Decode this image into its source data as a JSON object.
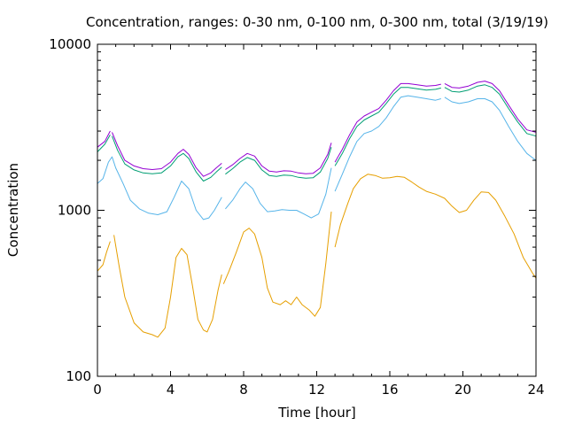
{
  "chart_data": {
    "type": "line",
    "title": "Concentration, ranges: 0-30 nm, 0-100 nm, 0-300 nm, total (3/19/19)",
    "xlabel": "Time [hour]",
    "ylabel": "Concentration",
    "xlim": [
      0,
      24
    ],
    "ylim": [
      100,
      10000
    ],
    "yscale": "log",
    "grid": false,
    "x_ticks": [
      0,
      4,
      8,
      12,
      16,
      20,
      24
    ],
    "x_tick_labels": [
      "0",
      "4",
      "8",
      "12",
      "16",
      "20",
      "24"
    ],
    "y_ticks": [
      100,
      1000,
      10000
    ],
    "y_tick_labels": [
      "100",
      "1000",
      "10000"
    ],
    "colors": {
      "0-30 nm": "#e69f00",
      "0-100 nm": "#56b4e9",
      "0-300 nm": "#009e73",
      "total": "#9400d3"
    },
    "series": [
      {
        "key": "0-30 nm",
        "color": "#e69f00",
        "segments": [
          [
            [
              0,
              430
            ],
            [
              0.3,
              470
            ],
            [
              0.5,
              560
            ],
            [
              0.7,
              650
            ]
          ],
          [
            [
              0.9,
              710
            ],
            [
              1.2,
              450
            ],
            [
              1.5,
              300
            ],
            [
              2.0,
              210
            ],
            [
              2.5,
              185
            ],
            [
              3.0,
              178
            ],
            [
              3.3,
              172
            ],
            [
              3.7,
              195
            ],
            [
              4.0,
              300
            ],
            [
              4.3,
              520
            ],
            [
              4.6,
              590
            ],
            [
              4.9,
              540
            ],
            [
              5.2,
              350
            ],
            [
              5.5,
              220
            ],
            [
              5.8,
              190
            ],
            [
              6.0,
              185
            ],
            [
              6.3,
              220
            ],
            [
              6.6,
              330
            ],
            [
              6.8,
              410
            ]
          ],
          [
            [
              6.9,
              360
            ],
            [
              7.2,
              430
            ],
            [
              7.6,
              560
            ],
            [
              8.0,
              740
            ],
            [
              8.3,
              780
            ],
            [
              8.6,
              720
            ],
            [
              9.0,
              520
            ],
            [
              9.3,
              340
            ],
            [
              9.6,
              280
            ],
            [
              10.0,
              270
            ],
            [
              10.3,
              285
            ],
            [
              10.6,
              270
            ],
            [
              10.9,
              300
            ],
            [
              11.2,
              270
            ],
            [
              11.6,
              250
            ],
            [
              11.9,
              230
            ],
            [
              12.2,
              260
            ],
            [
              12.5,
              480
            ],
            [
              12.8,
              980
            ]
          ],
          [
            [
              13.0,
              600
            ],
            [
              13.3,
              820
            ],
            [
              13.7,
              1100
            ],
            [
              14.0,
              1350
            ],
            [
              14.4,
              1550
            ],
            [
              14.8,
              1650
            ],
            [
              15.2,
              1620
            ],
            [
              15.6,
              1560
            ],
            [
              16.0,
              1570
            ],
            [
              16.4,
              1600
            ],
            [
              16.8,
              1580
            ],
            [
              17.2,
              1480
            ],
            [
              17.6,
              1380
            ],
            [
              18.0,
              1300
            ],
            [
              18.5,
              1250
            ],
            [
              19.0,
              1180
            ],
            [
              19.4,
              1060
            ],
            [
              19.8,
              970
            ],
            [
              20.2,
              1000
            ],
            [
              20.6,
              1150
            ],
            [
              21.0,
              1290
            ],
            [
              21.4,
              1280
            ],
            [
              21.8,
              1150
            ],
            [
              22.3,
              920
            ],
            [
              22.8,
              720
            ],
            [
              23.3,
              520
            ],
            [
              23.8,
              420
            ],
            [
              24.0,
              390
            ]
          ]
        ]
      },
      {
        "key": "0-100 nm",
        "color": "#56b4e9",
        "segments": [
          [
            [
              0,
              1450
            ],
            [
              0.3,
              1550
            ],
            [
              0.6,
              1950
            ],
            [
              0.8,
              2100
            ],
            [
              1.0,
              1800
            ],
            [
              1.4,
              1450
            ],
            [
              1.8,
              1150
            ],
            [
              2.3,
              1020
            ],
            [
              2.8,
              960
            ],
            [
              3.3,
              940
            ],
            [
              3.8,
              980
            ],
            [
              4.2,
              1200
            ],
            [
              4.6,
              1500
            ],
            [
              5.0,
              1350
            ],
            [
              5.4,
              1000
            ],
            [
              5.8,
              880
            ],
            [
              6.1,
              900
            ],
            [
              6.4,
              1000
            ],
            [
              6.8,
              1200
            ]
          ],
          [
            [
              7.0,
              1020
            ],
            [
              7.4,
              1150
            ],
            [
              7.8,
              1350
            ],
            [
              8.1,
              1480
            ],
            [
              8.5,
              1350
            ],
            [
              8.9,
              1100
            ],
            [
              9.3,
              980
            ],
            [
              9.7,
              990
            ],
            [
              10.1,
              1010
            ],
            [
              10.5,
              1000
            ],
            [
              10.9,
              1000
            ],
            [
              11.3,
              950
            ],
            [
              11.7,
              900
            ],
            [
              12.1,
              950
            ],
            [
              12.5,
              1250
            ],
            [
              12.8,
              1800
            ]
          ],
          [
            [
              13.0,
              1300
            ],
            [
              13.4,
              1650
            ],
            [
              13.8,
              2100
            ],
            [
              14.2,
              2600
            ],
            [
              14.6,
              2900
            ],
            [
              15.0,
              3000
            ],
            [
              15.4,
              3200
            ],
            [
              15.8,
              3600
            ],
            [
              16.2,
              4200
            ],
            [
              16.6,
              4800
            ],
            [
              17.0,
              4900
            ],
            [
              17.5,
              4800
            ],
            [
              18.0,
              4700
            ],
            [
              18.5,
              4600
            ],
            [
              18.8,
              4700
            ]
          ],
          [
            [
              19.0,
              4800
            ],
            [
              19.4,
              4500
            ],
            [
              19.8,
              4400
            ],
            [
              20.3,
              4500
            ],
            [
              20.8,
              4700
            ],
            [
              21.2,
              4700
            ],
            [
              21.6,
              4500
            ],
            [
              22.0,
              4000
            ],
            [
              22.5,
              3200
            ],
            [
              23.0,
              2600
            ],
            [
              23.5,
              2200
            ],
            [
              24.0,
              2000
            ]
          ]
        ]
      },
      {
        "key": "0-300 nm",
        "color": "#009e73",
        "segments": [
          [
            [
              0,
              2250
            ],
            [
              0.4,
              2500
            ],
            [
              0.7,
              2850
            ]
          ],
          [
            [
              0.8,
              2800
            ],
            [
              1.1,
              2300
            ],
            [
              1.5,
              1900
            ],
            [
              2.0,
              1750
            ],
            [
              2.5,
              1680
            ],
            [
              3.0,
              1660
            ],
            [
              3.5,
              1680
            ],
            [
              4.0,
              1850
            ],
            [
              4.4,
              2100
            ],
            [
              4.7,
              2200
            ],
            [
              5.0,
              2050
            ],
            [
              5.4,
              1700
            ],
            [
              5.8,
              1500
            ],
            [
              6.2,
              1580
            ],
            [
              6.5,
              1700
            ],
            [
              6.8,
              1820
            ]
          ],
          [
            [
              7.0,
              1650
            ],
            [
              7.4,
              1780
            ],
            [
              7.8,
              1950
            ],
            [
              8.2,
              2080
            ],
            [
              8.6,
              2000
            ],
            [
              9.0,
              1750
            ],
            [
              9.4,
              1620
            ],
            [
              9.8,
              1600
            ],
            [
              10.2,
              1630
            ],
            [
              10.6,
              1620
            ],
            [
              11.0,
              1580
            ],
            [
              11.4,
              1560
            ],
            [
              11.8,
              1570
            ],
            [
              12.2,
              1700
            ],
            [
              12.6,
              2050
            ],
            [
              12.8,
              2400
            ]
          ],
          [
            [
              13.0,
              1850
            ],
            [
              13.4,
              2200
            ],
            [
              13.8,
              2700
            ],
            [
              14.2,
              3200
            ],
            [
              14.6,
              3500
            ],
            [
              15.0,
              3700
            ],
            [
              15.4,
              3900
            ],
            [
              15.8,
              4400
            ],
            [
              16.2,
              5000
            ],
            [
              16.6,
              5500
            ],
            [
              17.0,
              5500
            ],
            [
              17.5,
              5400
            ],
            [
              18.0,
              5300
            ],
            [
              18.5,
              5350
            ],
            [
              18.8,
              5450
            ]
          ],
          [
            [
              19.0,
              5500
            ],
            [
              19.4,
              5200
            ],
            [
              19.8,
              5150
            ],
            [
              20.3,
              5300
            ],
            [
              20.8,
              5600
            ],
            [
              21.2,
              5700
            ],
            [
              21.6,
              5500
            ],
            [
              22.0,
              5000
            ],
            [
              22.5,
              4100
            ],
            [
              23.0,
              3400
            ],
            [
              23.5,
              2900
            ],
            [
              24.0,
              2800
            ]
          ]
        ]
      },
      {
        "key": "total",
        "color": "#9400d3",
        "segments": [
          [
            [
              0,
              2400
            ],
            [
              0.4,
              2600
            ],
            [
              0.7,
              3000
            ]
          ],
          [
            [
              0.8,
              2950
            ],
            [
              1.1,
              2450
            ],
            [
              1.5,
              2000
            ],
            [
              2.0,
              1850
            ],
            [
              2.5,
              1780
            ],
            [
              3.0,
              1760
            ],
            [
              3.5,
              1780
            ],
            [
              4.0,
              1950
            ],
            [
              4.4,
              2200
            ],
            [
              4.7,
              2330
            ],
            [
              5.0,
              2170
            ],
            [
              5.4,
              1800
            ],
            [
              5.8,
              1600
            ],
            [
              6.2,
              1680
            ],
            [
              6.5,
              1800
            ],
            [
              6.8,
              1920
            ]
          ],
          [
            [
              7.0,
              1760
            ],
            [
              7.4,
              1880
            ],
            [
              7.8,
              2050
            ],
            [
              8.2,
              2200
            ],
            [
              8.6,
              2120
            ],
            [
              9.0,
              1850
            ],
            [
              9.4,
              1720
            ],
            [
              9.8,
              1700
            ],
            [
              10.2,
              1730
            ],
            [
              10.6,
              1720
            ],
            [
              11.0,
              1680
            ],
            [
              11.4,
              1660
            ],
            [
              11.8,
              1670
            ],
            [
              12.2,
              1800
            ],
            [
              12.6,
              2170
            ],
            [
              12.8,
              2550
            ]
          ],
          [
            [
              13.0,
              1950
            ],
            [
              13.4,
              2330
            ],
            [
              13.8,
              2850
            ],
            [
              14.2,
              3400
            ],
            [
              14.6,
              3700
            ],
            [
              15.0,
              3900
            ],
            [
              15.4,
              4100
            ],
            [
              15.8,
              4600
            ],
            [
              16.2,
              5250
            ],
            [
              16.6,
              5800
            ],
            [
              17.0,
              5800
            ],
            [
              17.5,
              5700
            ],
            [
              18.0,
              5600
            ],
            [
              18.5,
              5650
            ],
            [
              18.8,
              5750
            ]
          ],
          [
            [
              19.0,
              5800
            ],
            [
              19.4,
              5500
            ],
            [
              19.8,
              5450
            ],
            [
              20.3,
              5600
            ],
            [
              20.8,
              5900
            ],
            [
              21.2,
              6000
            ],
            [
              21.6,
              5800
            ],
            [
              22.0,
              5250
            ],
            [
              22.5,
              4300
            ],
            [
              23.0,
              3550
            ],
            [
              23.5,
              3050
            ],
            [
              24.0,
              2950
            ]
          ]
        ]
      }
    ]
  }
}
